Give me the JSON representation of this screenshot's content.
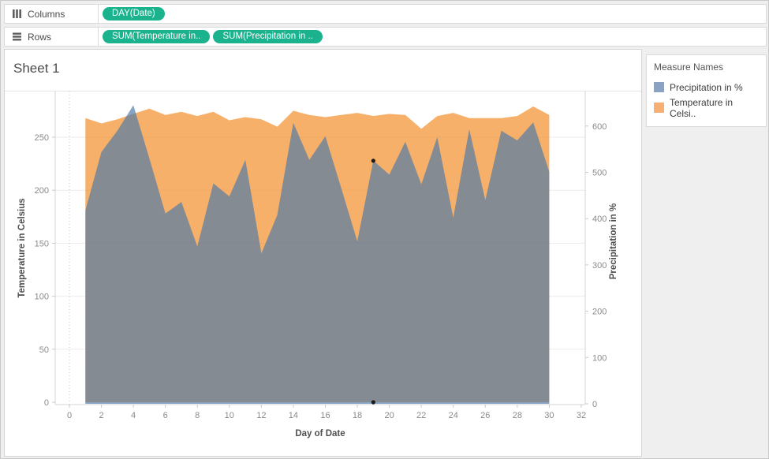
{
  "shelves": {
    "pill_color": "#1ab38d",
    "columns": {
      "label": "Columns",
      "pills": [
        "DAY(Date)"
      ]
    },
    "rows": {
      "label": "Rows",
      "pills": [
        "SUM(Temperature in..",
        "SUM(Precipitation in .."
      ]
    }
  },
  "sheet": {
    "title": "Sheet 1"
  },
  "legend": {
    "title": "Measure Names",
    "items": [
      {
        "label": "Precipitation in %",
        "swatch": "#8aa3c4"
      },
      {
        "label": "Temperature in Celsi..",
        "swatch": "#f6b074"
      }
    ]
  },
  "chart_data": {
    "type": "area",
    "title": "Sheet 1",
    "xlabel": "Day of Date",
    "x": [
      1,
      2,
      3,
      4,
      5,
      6,
      7,
      8,
      9,
      10,
      11,
      12,
      13,
      14,
      15,
      16,
      17,
      18,
      19,
      20,
      21,
      22,
      23,
      24,
      25,
      26,
      27,
      28,
      29,
      30
    ],
    "x_ticks": [
      0,
      2,
      4,
      6,
      8,
      10,
      12,
      14,
      16,
      18,
      20,
      22,
      24,
      26,
      28,
      30,
      32
    ],
    "xlim": [
      0,
      32
    ],
    "grid": "horizontal",
    "legend_position": "right",
    "series": [
      {
        "name": "SUM(Temperature in Celsius)",
        "legend": "Temperature in Celsi..",
        "axis": "left",
        "color": "#f28e2b",
        "fill_opacity": 0.7,
        "values": [
          268,
          263,
          267,
          272,
          277,
          271,
          274,
          270,
          274,
          266,
          269,
          267,
          260,
          275,
          271,
          269,
          271,
          273,
          270,
          272,
          271,
          258,
          270,
          273,
          268,
          268,
          268,
          270,
          279,
          271
        ]
      },
      {
        "name": "SUM(Precipitation in %)",
        "legend": "Precipitation in %",
        "axis": "right",
        "color": "#4e79a7",
        "fill_opacity": 0.68,
        "values": [
          418,
          544,
          590,
          645,
          530,
          411,
          436,
          340,
          476,
          448,
          527,
          325,
          408,
          607,
          527,
          578,
          465,
          351,
          525,
          495,
          566,
          474,
          576,
          402,
          593,
          440,
          590,
          569,
          608,
          501
        ]
      }
    ],
    "left_axis": {
      "label": "Temperature in Celsius",
      "ticks": [
        0,
        50,
        100,
        150,
        200,
        250
      ],
      "range": [
        0,
        296
      ]
    },
    "right_axis": {
      "label": "Precipitation in %",
      "ticks": [
        0,
        100,
        200,
        300,
        400,
        500,
        600
      ],
      "range": [
        0,
        676
      ]
    },
    "point_marks": [
      {
        "x": 19,
        "axis": "right",
        "value": 525
      },
      {
        "x": 19,
        "axis": "left",
        "value": 0
      }
    ]
  }
}
